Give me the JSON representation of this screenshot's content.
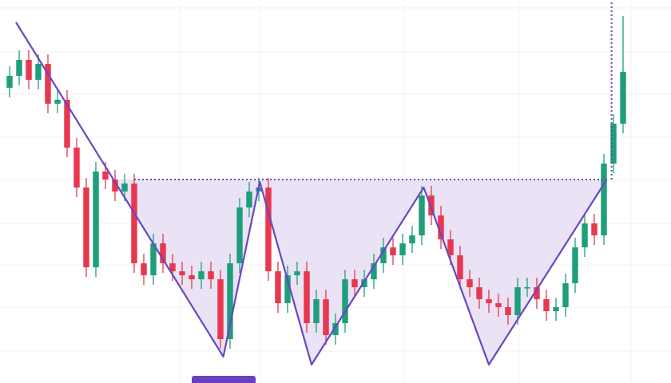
{
  "chart_data": {
    "type": "candlestick",
    "xlim": [
      -1,
      69
    ],
    "ylim": [
      0,
      480
    ],
    "up_color": "#1f9e7c",
    "down_color": "#e8384f",
    "open": [
      370,
      385,
      405,
      380,
      400,
      350,
      355,
      295,
      245,
      145,
      265,
      255,
      240,
      250,
      150,
      135,
      175,
      150,
      140,
      135,
      130,
      140,
      130,
      55,
      150,
      220,
      240,
      245,
      140,
      100,
      135,
      140,
      75,
      105,
      60,
      75,
      130,
      120,
      130,
      150,
      170,
      160,
      175,
      185,
      235,
      210,
      180,
      160,
      130,
      120,
      105,
      100,
      95,
      85,
      120,
      120,
      105,
      90,
      95,
      125,
      170,
      200,
      185,
      275,
      325
    ],
    "high": [
      397,
      417,
      417,
      412,
      412,
      367,
      367,
      307,
      257,
      277,
      277,
      267,
      262,
      262,
      162,
      187,
      187,
      162,
      152,
      147,
      152,
      152,
      142,
      162,
      232,
      252,
      257,
      257,
      152,
      147,
      152,
      152,
      117,
      117,
      87,
      142,
      142,
      142,
      162,
      182,
      182,
      187,
      197,
      247,
      247,
      222,
      192,
      172,
      142,
      132,
      117,
      112,
      107,
      132,
      132,
      132,
      117,
      107,
      137,
      182,
      212,
      212,
      287,
      337,
      460
    ],
    "low": [
      358,
      373,
      368,
      368,
      338,
      338,
      283,
      233,
      133,
      133,
      243,
      228,
      228,
      138,
      123,
      123,
      138,
      128,
      123,
      118,
      118,
      118,
      43,
      43,
      138,
      208,
      228,
      128,
      88,
      88,
      123,
      63,
      63,
      48,
      48,
      63,
      108,
      108,
      118,
      138,
      148,
      148,
      163,
      173,
      198,
      168,
      148,
      118,
      108,
      93,
      88,
      83,
      73,
      73,
      108,
      93,
      78,
      78,
      83,
      113,
      158,
      173,
      173,
      263,
      313
    ],
    "close": [
      385,
      405,
      380,
      400,
      350,
      355,
      295,
      245,
      145,
      265,
      255,
      240,
      250,
      150,
      135,
      175,
      150,
      140,
      135,
      130,
      140,
      130,
      55,
      150,
      220,
      240,
      245,
      140,
      100,
      135,
      140,
      75,
      105,
      60,
      75,
      130,
      120,
      130,
      150,
      170,
      160,
      175,
      185,
      235,
      210,
      180,
      160,
      130,
      120,
      105,
      100,
      95,
      85,
      120,
      120,
      105,
      90,
      95,
      125,
      170,
      200,
      185,
      275,
      325,
      390
    ],
    "pattern": {
      "color": "#6a46c2",
      "fill": "#e4dcf2",
      "x": [
        0.67,
        22.3,
        26.1,
        31.5,
        43.2,
        50,
        62.3
      ],
      "values": [
        452,
        33,
        252,
        23,
        245,
        23,
        255
      ],
      "neckline": {
        "x": [
          13,
          62.3
        ],
        "value": 255
      },
      "target": {
        "x": 62.8,
        "values": [
          255,
          480
        ]
      }
    }
  }
}
